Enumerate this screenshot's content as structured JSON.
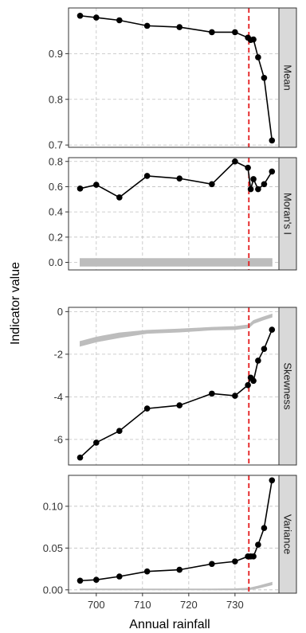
{
  "figure": {
    "ylabel": "Indicator value",
    "xlabel": "Annual rainfall"
  },
  "chart_data": [
    {
      "type": "line",
      "facet": "Mean",
      "x": [
        696.5,
        700,
        705,
        711,
        718,
        725,
        730,
        732.8,
        733.4,
        734,
        735,
        736.3,
        738
      ],
      "y": [
        0.983,
        0.979,
        0.973,
        0.961,
        0.958,
        0.947,
        0.947,
        0.935,
        0.93,
        0.931,
        0.892,
        0.847,
        0.71
      ],
      "band": {
        "x": [],
        "lower": [],
        "upper": []
      },
      "ylim": [
        0.695,
        1.0
      ],
      "yticks": [
        0.7,
        0.8,
        0.9
      ],
      "ytick_labels": [
        "0.7",
        "0.8",
        "0.9"
      ],
      "threshold_x": 733
    },
    {
      "type": "line",
      "facet": "Moran's I",
      "x": [
        696.5,
        700,
        705,
        711,
        718,
        725,
        730,
        732.8,
        733.4,
        734,
        735,
        736.3,
        738
      ],
      "y": [
        0.585,
        0.615,
        0.515,
        0.685,
        0.665,
        0.62,
        0.8,
        0.75,
        0.58,
        0.66,
        0.58,
        0.62,
        0.72
      ],
      "band": {
        "x": [
          696.5,
          738
        ],
        "lower": [
          -0.03,
          -0.03
        ],
        "upper": [
          0.03,
          0.03
        ]
      },
      "ylim": [
        -0.06,
        0.83
      ],
      "yticks": [
        0.0,
        0.2,
        0.4,
        0.6,
        0.8
      ],
      "ytick_labels": [
        "0.0",
        "0.2",
        "0.4",
        "0.6",
        "0.8"
      ],
      "threshold_x": 733
    },
    {
      "type": "line",
      "facet": "Skewness",
      "x": [
        696.5,
        700,
        705,
        711,
        718,
        725,
        730,
        732.8,
        733.4,
        734,
        735,
        736.3,
        738
      ],
      "y": [
        -6.85,
        -6.15,
        -5.6,
        -4.55,
        -4.4,
        -3.85,
        -3.95,
        -3.45,
        -3.1,
        -3.25,
        -2.3,
        -1.75,
        -0.85
      ],
      "band": {
        "x": [
          696.5,
          700,
          705,
          711,
          718,
          725,
          730,
          733,
          734,
          736,
          738
        ],
        "lower": [
          -1.62,
          -1.42,
          -1.22,
          -1.02,
          -0.96,
          -0.86,
          -0.84,
          -0.76,
          -0.56,
          -0.4,
          -0.26
        ],
        "upper": [
          -1.4,
          -1.2,
          -1.0,
          -0.88,
          -0.82,
          -0.74,
          -0.7,
          -0.62,
          -0.42,
          -0.26,
          -0.12
        ]
      },
      "ylim": [
        -7.2,
        0.2
      ],
      "yticks": [
        -6,
        -4,
        -2,
        0
      ],
      "ytick_labels": [
        "-6",
        "-4",
        "-2",
        "0"
      ],
      "threshold_x": 733
    },
    {
      "type": "line",
      "facet": "Variance",
      "x": [
        696.5,
        700,
        705,
        711,
        718,
        725,
        730,
        732.8,
        733.4,
        734,
        735,
        736.3,
        738
      ],
      "y": [
        0.011,
        0.012,
        0.016,
        0.022,
        0.024,
        0.031,
        0.034,
        0.04,
        0.04,
        0.04,
        0.054,
        0.074,
        0.131
      ],
      "band": {
        "x": [
          696.5,
          700,
          705,
          711,
          718,
          725,
          730,
          733,
          735,
          738
        ],
        "lower": [
          0.0,
          0.0,
          0.0,
          0.0,
          0.0,
          0.0,
          0.0,
          0.0002,
          0.002,
          0.006
        ],
        "upper": [
          0.001,
          0.001,
          0.001,
          0.001,
          0.001,
          0.001,
          0.0012,
          0.002,
          0.0045,
          0.009
        ]
      },
      "ylim": [
        -0.004,
        0.137
      ],
      "yticks": [
        0.0,
        0.05,
        0.1
      ],
      "ytick_labels": [
        "0.00",
        "0.05",
        "0.10"
      ],
      "threshold_x": 733
    }
  ],
  "x_axis": {
    "xlim": [
      694,
      739.5
    ],
    "xticks": [
      700,
      710,
      720,
      730
    ],
    "xtick_labels": [
      "700",
      "710",
      "720",
      "730"
    ]
  },
  "colors": {
    "threshold": "#e41a1c",
    "line": "#000000",
    "band": "#bdbdbd",
    "grid": "#bfbfbf",
    "strip": "#d9d9d9",
    "panel_border": "#333333"
  }
}
